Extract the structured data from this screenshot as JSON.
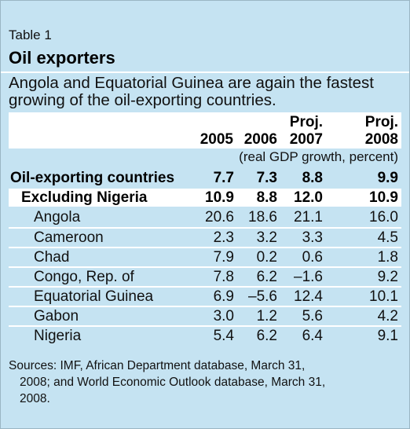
{
  "table_label": "Table 1",
  "title": "Oil exporters",
  "subtitle": "Angola and Equatorial Guinea are again the fastest growing of the oil-exporting countries.",
  "columns": [
    {
      "proj": "",
      "year": "2005"
    },
    {
      "proj": "",
      "year": "2006"
    },
    {
      "proj": "Proj.",
      "year": "2007"
    },
    {
      "proj": "Proj.",
      "year": "2008"
    }
  ],
  "units_note": "(real GDP growth, percent)",
  "rows": [
    {
      "name": "Oil-exporting countries",
      "values": [
        "7.7",
        "7.3",
        "8.8",
        "9.9"
      ]
    },
    {
      "name": "Excluding Nigeria",
      "values": [
        "10.9",
        "8.8",
        "12.0",
        "10.9"
      ]
    },
    {
      "name": "Angola",
      "values": [
        "20.6",
        "18.6",
        "21.1",
        "16.0"
      ]
    },
    {
      "name": "Cameroon",
      "values": [
        "2.3",
        "3.2",
        "3.3",
        "4.5"
      ]
    },
    {
      "name": "Chad",
      "values": [
        "7.9",
        "0.2",
        "0.6",
        "1.8"
      ]
    },
    {
      "name": "Congo, Rep. of",
      "values": [
        "7.8",
        "6.2",
        "–1.6",
        "9.2"
      ]
    },
    {
      "name": "Equatorial Guinea",
      "values": [
        "6.9",
        "–5.6",
        "12.4",
        "10.1"
      ]
    },
    {
      "name": "Gabon",
      "values": [
        "3.0",
        "1.2",
        "5.6",
        "4.2"
      ]
    },
    {
      "name": "Nigeria",
      "values": [
        "5.4",
        "6.2",
        "6.4",
        "9.1"
      ]
    }
  ],
  "sources": {
    "line1": "Sources: IMF, African Department database, March 31,",
    "line2": "2008; and World Economic Outlook database, March 31,",
    "line3": "2008."
  }
}
